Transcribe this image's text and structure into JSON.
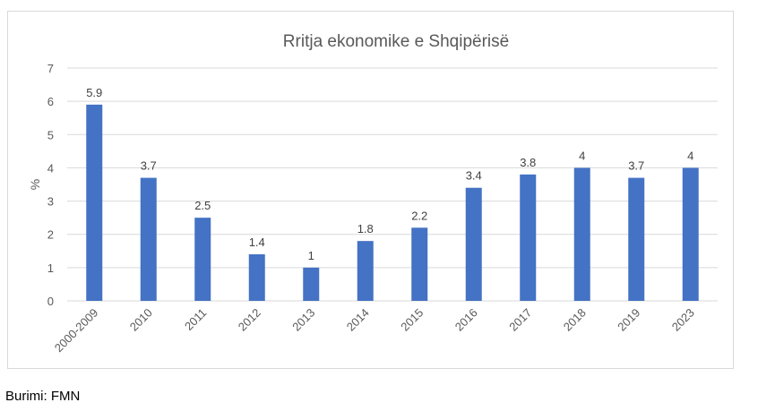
{
  "chart_data": {
    "type": "bar",
    "title": "Rritja ekonomike e Shqipërisë",
    "ylabel": "%",
    "xlabel": "",
    "categories": [
      "2000-2009",
      "2010",
      "2011",
      "2012",
      "2013",
      "2014",
      "2015",
      "2016",
      "2017",
      "2018",
      "2019",
      "2023"
    ],
    "values": [
      5.9,
      3.7,
      2.5,
      1.4,
      1,
      1.8,
      2.2,
      3.4,
      3.8,
      4,
      3.7,
      4
    ],
    "value_labels": [
      "5.9",
      "3.7",
      "2.5",
      "1.4",
      "1",
      "1.8",
      "2.2",
      "3.4",
      "3.8",
      "4",
      "3.7",
      "4"
    ],
    "ylim": [
      0,
      7
    ],
    "yticks": [
      "0",
      "1",
      "2",
      "3",
      "4",
      "5",
      "6",
      "7"
    ],
    "grid": true,
    "bar_color": "#4472c4",
    "grid_color": "#d9d9d9",
    "text_color": "#595959"
  },
  "source": "Burimi: FMN"
}
